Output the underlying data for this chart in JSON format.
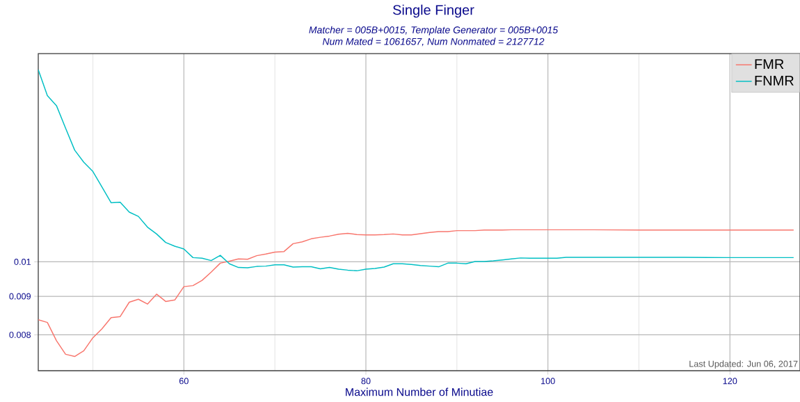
{
  "chart_data": {
    "type": "line",
    "title": "Single Finger",
    "subtitle": "Matcher = 005B+0015, Template Generator = 005B+0015\nNum Mated = 1061657, Num Nonmated = 2127712",
    "xlabel": "Maximum Number of Minutiae",
    "annotations": [
      "Last Updated: Jun 06, 2017"
    ],
    "x": [
      44,
      45,
      46,
      47,
      48,
      49,
      50,
      51,
      52,
      53,
      54,
      55,
      56,
      57,
      58,
      59,
      60,
      61,
      62,
      63,
      64,
      65,
      66,
      67,
      68,
      69,
      70,
      71,
      72,
      73,
      74,
      75,
      76,
      77,
      78,
      79,
      80,
      81,
      82,
      83,
      84,
      85,
      86,
      87,
      88,
      89,
      90,
      91,
      92,
      93,
      94,
      95,
      96,
      97,
      98,
      99,
      100,
      101,
      102,
      105,
      110,
      115,
      120,
      125,
      127
    ],
    "series": [
      {
        "name": "FMR",
        "color": "#f8766d",
        "values": [
          0.00838,
          0.00831,
          0.00786,
          0.00754,
          0.00749,
          0.00762,
          0.00793,
          0.00815,
          0.00843,
          0.00846,
          0.00884,
          0.00892,
          0.00879,
          0.00906,
          0.00886,
          0.0089,
          0.00927,
          0.0093,
          0.00945,
          0.00969,
          0.00996,
          0.01002,
          0.01009,
          0.01008,
          0.01019,
          0.01024,
          0.0103,
          0.01032,
          0.01057,
          0.01063,
          0.01073,
          0.01078,
          0.01082,
          0.01088,
          0.01091,
          0.01087,
          0.01086,
          0.01086,
          0.01087,
          0.01089,
          0.01086,
          0.01086,
          0.0109,
          0.01094,
          0.01097,
          0.01097,
          0.011,
          0.011,
          0.011,
          0.01102,
          0.01102,
          0.01102,
          0.01103,
          0.01103,
          0.01103,
          0.01103,
          0.01103,
          0.01103,
          0.01103,
          0.01103,
          0.01102,
          0.01102,
          0.01102,
          0.01102,
          0.01102
        ]
      },
      {
        "name": "FNMR",
        "color": "#00bfc4",
        "values": [
          0.01799,
          0.01662,
          0.01612,
          0.01505,
          0.01407,
          0.01356,
          0.01318,
          0.01257,
          0.01198,
          0.012,
          0.01164,
          0.01149,
          0.01112,
          0.01089,
          0.01061,
          0.01049,
          0.0104,
          0.01013,
          0.01011,
          0.01004,
          0.0102,
          0.00994,
          0.00983,
          0.00982,
          0.00986,
          0.00987,
          0.00991,
          0.00991,
          0.00984,
          0.00985,
          0.00985,
          0.00979,
          0.00983,
          0.00978,
          0.00975,
          0.00973,
          0.00978,
          0.0098,
          0.00984,
          0.00994,
          0.00994,
          0.00992,
          0.00989,
          0.00987,
          0.00985,
          0.00996,
          0.00996,
          0.00994,
          0.01001,
          0.01001,
          0.01003,
          0.01006,
          0.01009,
          0.01012,
          0.01011,
          0.01011,
          0.01011,
          0.01011,
          0.01014,
          0.01014,
          0.01014,
          0.01014,
          0.01013,
          0.01013,
          0.01013
        ]
      }
    ],
    "xlim": [
      44,
      127.7
    ],
    "ylim": [
      0.00717,
      0.0189
    ],
    "xticks": [
      {
        "value": 50,
        "label": null
      },
      60,
      {
        "value": 70,
        "label": null
      },
      80,
      {
        "value": 90,
        "label": null
      },
      100,
      {
        "value": 110,
        "label": null
      },
      120
    ],
    "yticks": [
      0.008,
      0.009,
      0.01
    ],
    "log": "y",
    "grid": true,
    "legend": "top right",
    "marker": "none"
  }
}
